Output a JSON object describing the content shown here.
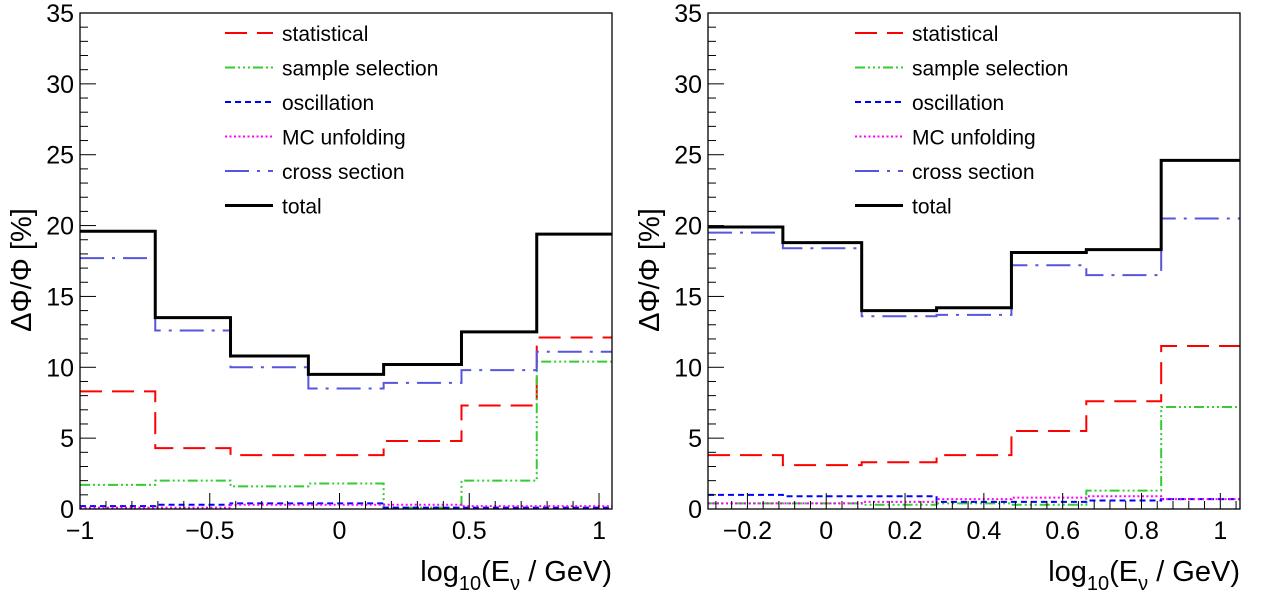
{
  "chart_data": [
    {
      "type": "line",
      "step": true,
      "xlabel": "log10(Eν / GeV)",
      "ylabel": "ΔΦ/Φ [%]",
      "xlim": [
        -1,
        1.05
      ],
      "ylim": [
        0,
        35
      ],
      "x_ticks": [
        -1,
        -0.5,
        0,
        0.5,
        1
      ],
      "x_tick_labels": [
        "−1",
        "−0.5",
        "0",
        "0.5",
        "1"
      ],
      "y_ticks": [
        0,
        5,
        10,
        15,
        20,
        25,
        30,
        35
      ],
      "y_tick_labels": [
        "0",
        "5",
        "10",
        "15",
        "20",
        "25",
        "30",
        "35"
      ],
      "bin_edges": [
        -1.0,
        -0.71,
        -0.42,
        -0.12,
        0.17,
        0.47,
        0.76,
        1.05
      ],
      "legend_position": "top-center",
      "series": [
        {
          "name": "statistical",
          "color": "#ff0000",
          "values": [
            8.3,
            4.3,
            3.8,
            3.8,
            4.8,
            7.3,
            12.1
          ]
        },
        {
          "name": "sample selection",
          "color": "#33cc33",
          "values": [
            1.7,
            2.0,
            1.6,
            1.8,
            0.1,
            2.0,
            10.4
          ]
        },
        {
          "name": "oscillation",
          "color": "#0000ff",
          "values": [
            0.2,
            0.3,
            0.4,
            0.4,
            0.1,
            0.1,
            0.1
          ]
        },
        {
          "name": "MC unfolding",
          "color": "#ff00ff",
          "values": [
            0.1,
            0.1,
            0.3,
            0.3,
            0.3,
            0.2,
            0.2
          ]
        },
        {
          "name": "cross section",
          "color": "#5555dd",
          "values": [
            17.7,
            12.6,
            10.0,
            8.5,
            8.9,
            9.8,
            11.1
          ]
        },
        {
          "name": "total",
          "color": "#000000",
          "values": [
            19.6,
            13.5,
            10.8,
            9.5,
            10.2,
            12.5,
            19.4
          ]
        }
      ]
    },
    {
      "type": "line",
      "step": true,
      "xlabel": "log10(Eν / GeV)",
      "ylabel": "ΔΦ/Φ [%]",
      "xlim": [
        -0.3,
        1.05
      ],
      "ylim": [
        0,
        35
      ],
      "x_ticks": [
        -0.2,
        0,
        0.2,
        0.4,
        0.6,
        0.8,
        1
      ],
      "x_tick_labels": [
        "−0.2",
        "0",
        "0.2",
        "0.4",
        "0.6",
        "0.8",
        "1"
      ],
      "y_ticks": [
        0,
        5,
        10,
        15,
        20,
        25,
        30,
        35
      ],
      "y_tick_labels": [
        "0",
        "5",
        "10",
        "15",
        "20",
        "25",
        "30",
        "35"
      ],
      "bin_edges": [
        -0.3,
        -0.11,
        0.09,
        0.28,
        0.47,
        0.66,
        0.85,
        1.05
      ],
      "legend_position": "top-center",
      "series": [
        {
          "name": "statistical",
          "color": "#ff0000",
          "values": [
            3.8,
            3.1,
            3.3,
            3.8,
            5.5,
            7.6,
            11.5
          ]
        },
        {
          "name": "sample selection",
          "color": "#33cc33",
          "values": [
            0.4,
            0.4,
            0.3,
            0.4,
            0.3,
            1.3,
            7.2
          ]
        },
        {
          "name": "oscillation",
          "color": "#0000ff",
          "values": [
            1.0,
            0.9,
            0.9,
            0.5,
            0.5,
            0.6,
            0.7
          ]
        },
        {
          "name": "MC unfolding",
          "color": "#ff00ff",
          "values": [
            0.4,
            0.4,
            0.5,
            0.7,
            0.8,
            0.9,
            0.7
          ]
        },
        {
          "name": "cross section",
          "color": "#5555dd",
          "values": [
            19.5,
            18.4,
            13.6,
            13.7,
            17.2,
            16.5,
            20.5
          ]
        },
        {
          "name": "total",
          "color": "#000000",
          "values": [
            19.9,
            18.8,
            14.0,
            14.2,
            18.1,
            18.3,
            24.6
          ]
        }
      ]
    }
  ]
}
